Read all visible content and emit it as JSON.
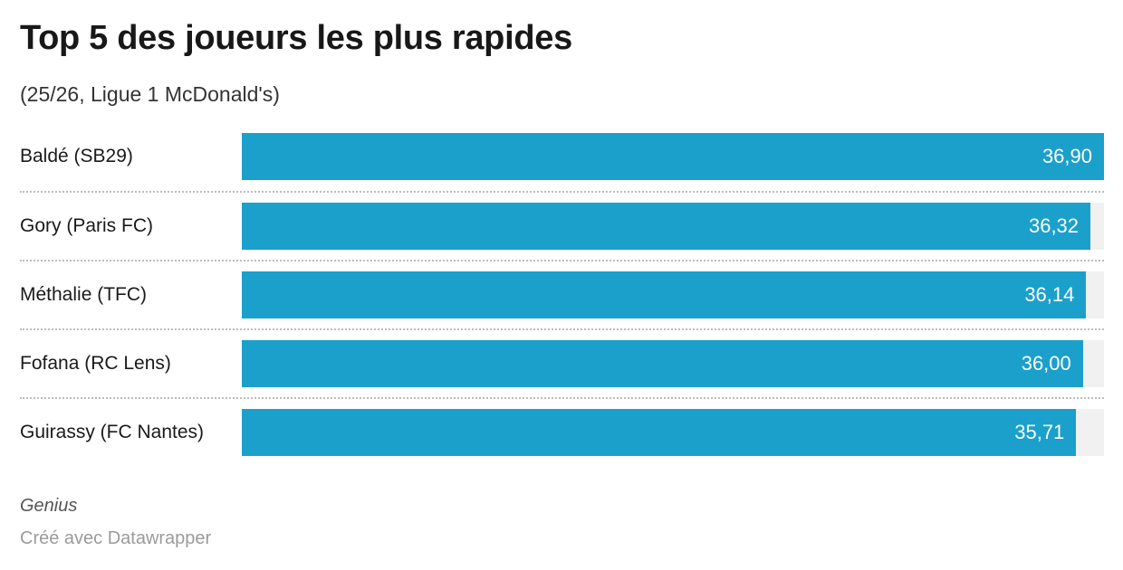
{
  "header": {
    "title": "Top 5 des joueurs les plus rapides",
    "subtitle": "(25/26, Ligue 1 McDonald's)"
  },
  "footer": {
    "source": "Genius",
    "credit": "Créé avec Datawrapper"
  },
  "colors": {
    "bar": "#1BA0CC",
    "bar_track": "#f1f1f1",
    "separator": "#bdbdbd",
    "title_text": "#181818",
    "value_text": "#ffffff"
  },
  "chart_data": {
    "type": "bar",
    "orientation": "horizontal",
    "title": "Top 5 des joueurs les plus rapides",
    "subtitle": "(25/26, Ligue 1 McDonald's)",
    "categories": [
      "Baldé (SB29)",
      "Gory (Paris FC)",
      "Méthalie (TFC)",
      "Fofana (RC Lens)",
      "Guirassy (FC Nantes)"
    ],
    "values": [
      36.9,
      36.32,
      36.14,
      36.0,
      35.71
    ],
    "value_labels": [
      "36,90",
      "36,32",
      "36,14",
      "36,00",
      "35,71"
    ],
    "xlim": [
      0,
      36.9
    ],
    "grid": false,
    "legend": false,
    "value_label_position": "inside-end",
    "separator_style": "dotted"
  }
}
